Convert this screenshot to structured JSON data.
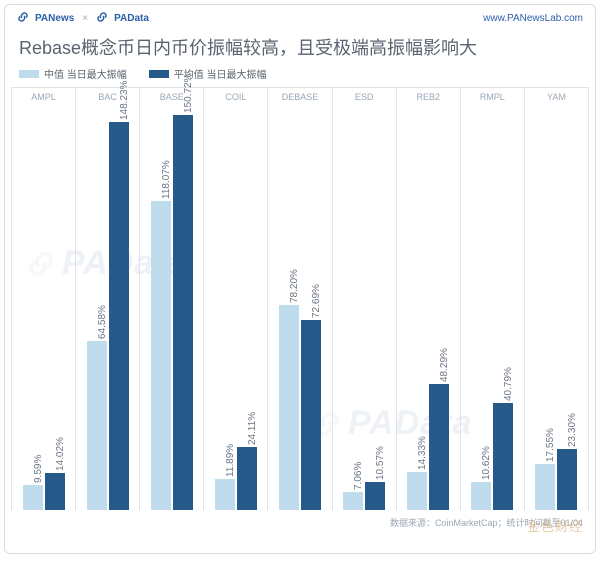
{
  "header": {
    "brand1": "PANews",
    "brand2": "PAData",
    "domain": "www.PANewsLab.com"
  },
  "title": "Rebase概念币日内币价振幅较高，且受极端高振幅影响大",
  "legend": {
    "median": {
      "label": "中值 当日最大振幅",
      "color": "#bedcec"
    },
    "mean": {
      "label": "平均值 当日最大振幅",
      "color": "#255a8a"
    }
  },
  "chart": {
    "type": "bar",
    "y_max": 155,
    "background_color": "#ffffff",
    "grid_color": "#e0e4e9",
    "label_fontsize": 10,
    "label_color": "#6b7684",
    "categories": [
      "AMPL",
      "BAC",
      "BASE",
      "COIL",
      "DEBASE",
      "ESD",
      "REB2",
      "RMPL",
      "YAM"
    ],
    "series": {
      "median": {
        "color": "#bedcec",
        "values": [
          9.59,
          64.58,
          118.07,
          11.89,
          78.2,
          7.06,
          14.33,
          10.62,
          17.55
        ]
      },
      "mean": {
        "color": "#255a8a",
        "values": [
          14.02,
          148.23,
          150.72,
          24.11,
          72.69,
          10.57,
          48.29,
          40.79,
          23.3
        ]
      }
    },
    "labels": {
      "median": [
        "9.59%",
        "64.58%",
        "118.07%",
        "11.89%",
        "78.20%",
        "7.06%",
        "14.33%",
        "10.62%",
        "17.55%"
      ],
      "mean": [
        "14.02%",
        "148.23%",
        "150.72%",
        "24.11%",
        "72.69%",
        "10.57%",
        "48.29%",
        "40.79%",
        "23.30%"
      ]
    }
  },
  "source": "数据来源：CoinMarketCap；统计时间截至01/04",
  "watermark": "PAData",
  "overlay_text": "金色财经"
}
